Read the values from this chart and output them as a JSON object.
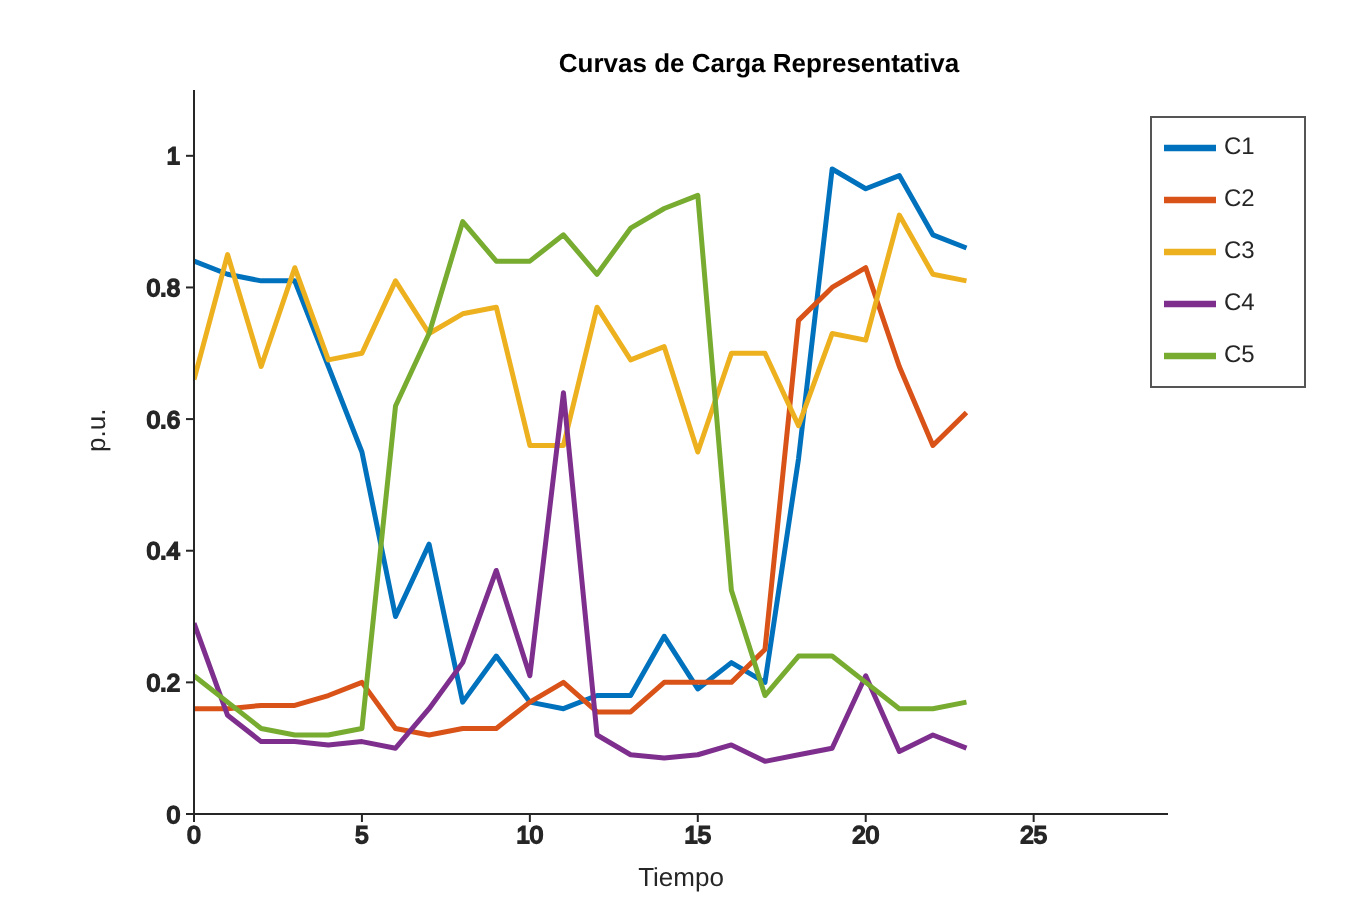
{
  "chart_data": {
    "type": "line",
    "title": "Curvas de Carga Representativa",
    "xlabel": "Tiempo",
    "ylabel": "p.u.",
    "x": [
      0,
      1,
      2,
      3,
      4,
      5,
      6,
      7,
      8,
      9,
      10,
      11,
      12,
      13,
      14,
      15,
      16,
      17,
      18,
      19,
      20,
      21,
      22,
      23
    ],
    "xlim": [
      0,
      29
    ],
    "xticks": [
      0,
      5,
      10,
      15,
      20,
      25
    ],
    "ylim": [
      0,
      1.1
    ],
    "yticks": [
      0,
      0.2,
      0.4,
      0.6,
      0.8,
      1
    ],
    "legend": "top right",
    "series": [
      {
        "name": "C1",
        "color": "#0072bd",
        "values": [
          0.84,
          0.82,
          0.81,
          0.81,
          0.68,
          0.55,
          0.3,
          0.41,
          0.17,
          0.24,
          0.17,
          0.16,
          0.18,
          0.18,
          0.27,
          0.19,
          0.23,
          0.2,
          0.54,
          0.98,
          0.95,
          0.97,
          0.88,
          0.86
        ]
      },
      {
        "name": "C2",
        "color": "#d95319",
        "values": [
          0.16,
          0.16,
          0.165,
          0.165,
          0.18,
          0.2,
          0.13,
          0.12,
          0.13,
          0.13,
          0.17,
          0.2,
          0.155,
          0.155,
          0.2,
          0.2,
          0.2,
          0.25,
          0.75,
          0.8,
          0.83,
          0.68,
          0.56,
          0.61
        ]
      },
      {
        "name": "C3",
        "color": "#edb120",
        "values": [
          0.66,
          0.85,
          0.68,
          0.83,
          0.69,
          0.7,
          0.81,
          0.73,
          0.76,
          0.77,
          0.56,
          0.56,
          0.77,
          0.69,
          0.71,
          0.55,
          0.7,
          0.7,
          0.59,
          0.73,
          0.72,
          0.91,
          0.82,
          0.81
        ]
      },
      {
        "name": "C4",
        "color": "#7e2f8e",
        "values": [
          0.29,
          0.15,
          0.11,
          0.11,
          0.105,
          0.11,
          0.1,
          0.16,
          0.23,
          0.37,
          0.21,
          0.64,
          0.12,
          0.09,
          0.085,
          0.09,
          0.105,
          0.08,
          0.09,
          0.1,
          0.21,
          0.095,
          0.12,
          0.1
        ]
      },
      {
        "name": "C5",
        "color": "#77ac30",
        "values": [
          0.21,
          0.17,
          0.13,
          0.12,
          0.12,
          0.13,
          0.62,
          0.73,
          0.9,
          0.84,
          0.84,
          0.88,
          0.82,
          0.89,
          0.92,
          0.94,
          0.34,
          0.18,
          0.24,
          0.24,
          0.2,
          0.16,
          0.16,
          0.17
        ]
      }
    ]
  }
}
